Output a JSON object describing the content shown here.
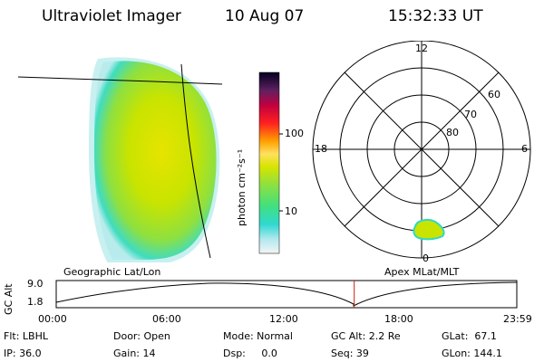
{
  "header": {
    "instrument": "Ultraviolet Imager",
    "date": "10 Aug 07",
    "time": "15:32:33 UT"
  },
  "colorbar": {
    "label": "photon cm⁻²s⁻¹",
    "ticks": [
      "100",
      "10"
    ]
  },
  "polar_plot": {
    "mlt_labels": {
      "top": "12",
      "right": "6",
      "bottom": "0",
      "left": "18"
    },
    "lat_labels": [
      "60",
      "70",
      "80"
    ]
  },
  "panel_labels": {
    "left": "Geographic Lat/Lon",
    "right": "Apex MLat/MLT"
  },
  "orbit_plot": {
    "ylabel": "GC Alt",
    "ytick_top": "9.0",
    "ytick_bottom": "1.8",
    "xticks": [
      "00:00",
      "06:00",
      "12:00",
      "18:00",
      "23:59"
    ],
    "marker_time_fraction": 0.647
  },
  "info": {
    "row1": [
      "Flt: LBHL",
      "Door: Open",
      "Mode: Normal",
      "GC Alt: 2.2 Re",
      "GLat:  67.1"
    ],
    "row2": [
      "IP: 36.0",
      "Gain: 14",
      "Dsp:     0.0",
      "Seq: 39",
      "GLon: 144.1"
    ]
  },
  "colors": {
    "marker": "#cc2200",
    "aurora_core": "#c8e000",
    "aurora_edge": "#30d8c8"
  }
}
